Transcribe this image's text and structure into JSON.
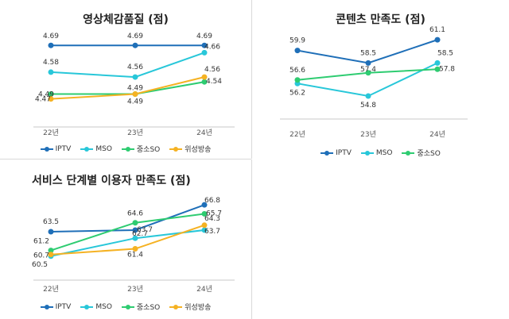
{
  "colors": {
    "IPTV": "#1f6fb8",
    "MSO": "#28c7d9",
    "중소SO": "#2ecc71",
    "위성방송": "#f5b223"
  },
  "chart_data": [
    {
      "id": "video",
      "type": "line",
      "title": "영상체감품질 (점)",
      "categories": [
        "22년",
        "23년",
        "24년"
      ],
      "ylim": [
        4.42,
        4.72
      ],
      "series": [
        {
          "name": "IPTV",
          "values": [
            4.69,
            4.69,
            4.69
          ]
        },
        {
          "name": "MSO",
          "values": [
            4.58,
            4.56,
            4.66
          ]
        },
        {
          "name": "중소SO",
          "values": [
            4.49,
            4.49,
            4.54
          ]
        },
        {
          "name": "위성방송",
          "values": [
            4.47,
            4.49,
            4.56
          ]
        }
      ]
    },
    {
      "id": "content",
      "type": "line",
      "title": "콘텐츠 만족도 (점)",
      "categories": [
        "22년",
        "23년",
        "24년"
      ],
      "ylim": [
        54,
        62
      ],
      "series": [
        {
          "name": "IPTV",
          "values": [
            59.9,
            58.5,
            61.1
          ]
        },
        {
          "name": "MSO",
          "values": [
            56.2,
            54.8,
            58.5
          ]
        },
        {
          "name": "중소SO",
          "values": [
            56.6,
            57.4,
            57.8
          ]
        }
      ]
    },
    {
      "id": "service",
      "type": "line",
      "title": "서비스 단계별 이용자 만족도 (점)",
      "categories": [
        "22년",
        "23년",
        "24년"
      ],
      "ylim": [
        59.5,
        67.5
      ],
      "series": [
        {
          "name": "IPTV",
          "values": [
            63.5,
            63.7,
            66.8
          ]
        },
        {
          "name": "MSO",
          "values": [
            60.5,
            62.7,
            63.7
          ]
        },
        {
          "name": "중소SO",
          "values": [
            61.2,
            64.6,
            65.7
          ]
        },
        {
          "name": "위성방송",
          "values": [
            60.7,
            61.4,
            64.3
          ]
        }
      ]
    }
  ]
}
